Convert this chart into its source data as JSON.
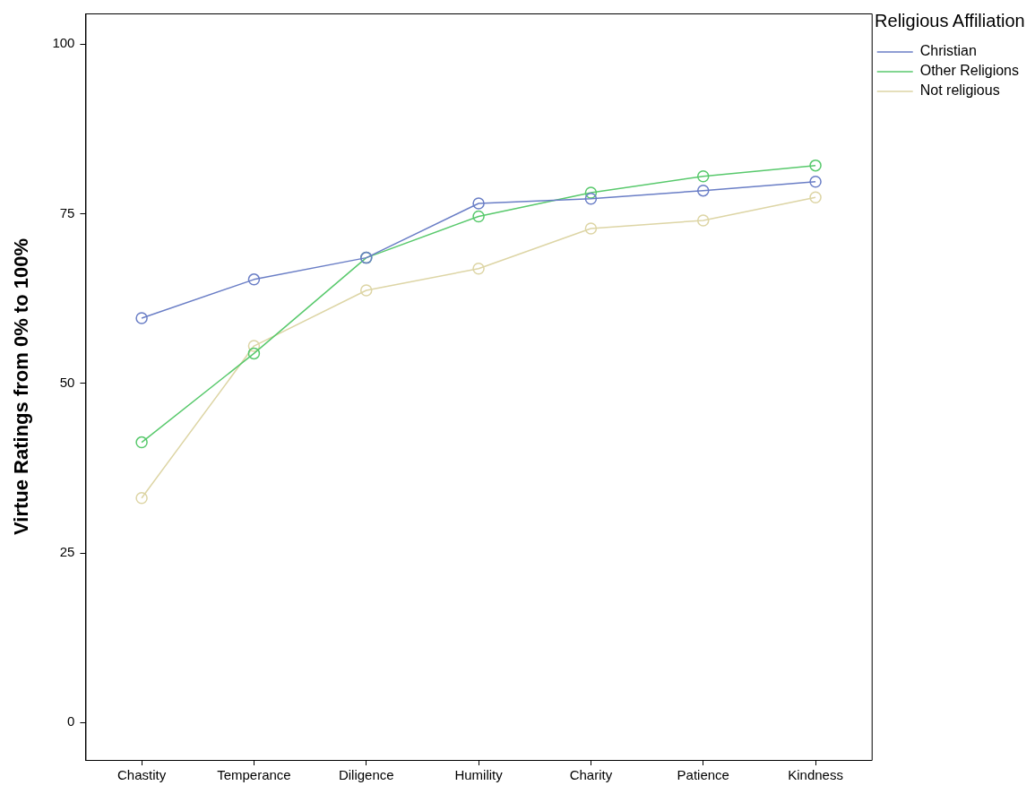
{
  "chart_data": {
    "type": "line",
    "ylabel": "Virtue Ratings from 0% to 100%",
    "legend_title": "Religious Affiliation",
    "categories": [
      "Chastity",
      "Temperance",
      "Diligence",
      "Humility",
      "Charity",
      "Patience",
      "Kindness"
    ],
    "series": [
      {
        "name": "Christian",
        "color": "#6a7ec6",
        "values": [
          59.6,
          65.3,
          68.5,
          76.5,
          77.2,
          78.4,
          79.7
        ]
      },
      {
        "name": "Other Religions",
        "color": "#58c96c",
        "values": [
          41.3,
          54.4,
          68.5,
          74.6,
          78.1,
          80.5,
          82.1
        ]
      },
      {
        "name": "Not religious",
        "color": "#ddd5a5",
        "values": [
          33.1,
          55.5,
          63.7,
          66.9,
          72.8,
          74.0,
          77.4
        ]
      }
    ],
    "ylim": [
      -5.5,
      104.5
    ],
    "yticks": [
      0,
      25,
      50,
      75,
      100
    ],
    "grid": false,
    "legend": "top right",
    "marker": "circle",
    "line_style": "solid"
  }
}
